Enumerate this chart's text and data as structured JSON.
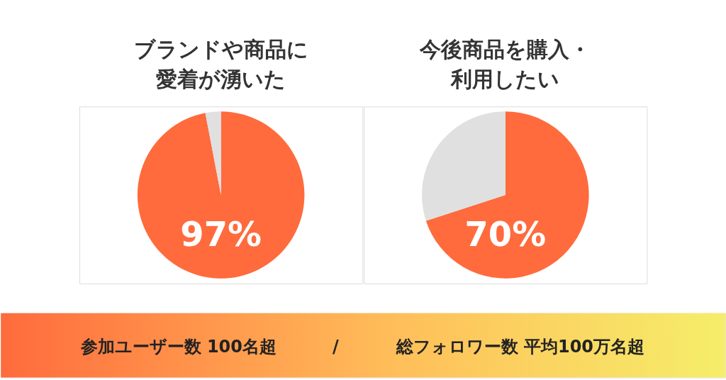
{
  "chart_data": [
    {
      "type": "pie",
      "title": "ブランドや商品に愛着が湧いた",
      "categories": [
        null,
        null
      ],
      "values": [
        97,
        3
      ],
      "colors": [
        "#ff6b3d",
        "#e0e0e0"
      ],
      "value_labels": [
        "97%",
        null
      ]
    },
    {
      "type": "pie",
      "title": "今後商品を購入・利用したい",
      "categories": [
        null,
        null
      ],
      "values": [
        70,
        30
      ],
      "colors": [
        "#ff6b3d",
        "#e0e0e0"
      ],
      "value_labels": [
        "70%",
        null
      ]
    },
    {
      "type": "other",
      "annotations": [
        "参加ユーザー数 100名超",
        "/",
        "総フォロワー数 平均100万名超"
      ]
    }
  ]
}
